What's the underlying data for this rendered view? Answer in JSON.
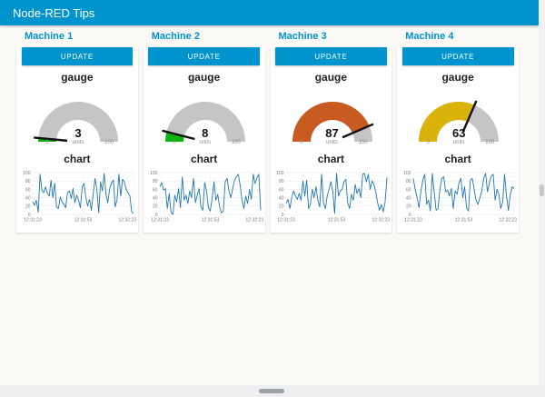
{
  "header": {
    "title": "Node-RED Tips"
  },
  "theme": {
    "accent_blue": "#0094ce",
    "page_background": "#faf9f5",
    "card_background": "#ffffff",
    "gauge_track_gray": "#c5c5c5",
    "needle_color": "#111111",
    "chart_line_color": "#1f77b4",
    "grid_color": "#e6e6e6",
    "tick_text_color": "#777777"
  },
  "machines": [
    {
      "name": "Machine 1",
      "button_label": "UPDATE",
      "gauge": {
        "title": "gauge",
        "value": 3,
        "min": 0,
        "max": 100,
        "units": "units",
        "fill_color": "#09b509"
      },
      "chart_title": "chart"
    },
    {
      "name": "Machine 2",
      "button_label": "UPDATE",
      "gauge": {
        "title": "gauge",
        "value": 8,
        "min": 0,
        "max": 100,
        "units": "units",
        "fill_color": "#09b509"
      },
      "chart_title": "chart"
    },
    {
      "name": "Machine 3",
      "button_label": "UPDATE",
      "gauge": {
        "title": "gauge",
        "value": 87,
        "min": 0,
        "max": 100,
        "units": "units",
        "fill_color": "#c85c20"
      },
      "chart_title": "chart"
    },
    {
      "name": "Machine 4",
      "button_label": "UPDATE",
      "gauge": {
        "title": "gauge",
        "value": 63,
        "min": 0,
        "max": 100,
        "units": "units",
        "fill_color": "#dab30a"
      },
      "chart_title": "chart"
    }
  ],
  "chart_data": [
    {
      "type": "line",
      "title": "chart",
      "x_ticks": [
        "12:31:23",
        "12:31:53",
        "12:32:23"
      ],
      "y_ticks": [
        0,
        20,
        40,
        60,
        80,
        100
      ],
      "ylim": [
        0,
        100
      ],
      "grid": true,
      "legend": false,
      "values": [
        30,
        22,
        34,
        5,
        96,
        58,
        52,
        66,
        50,
        44,
        82,
        40,
        75,
        18,
        14,
        42,
        30,
        24,
        16,
        52,
        56,
        38,
        62,
        28,
        46,
        34,
        16,
        66,
        74,
        40,
        20,
        36,
        10,
        48,
        86,
        60,
        4,
        78,
        56,
        98,
        48,
        28,
        62,
        76,
        82,
        18,
        34,
        96,
        44,
        84,
        78,
        60,
        52,
        44,
        6,
        2
      ]
    },
    {
      "type": "line",
      "title": "chart",
      "x_ticks": [
        "12:31:23",
        "12:31:53",
        "12:32:23"
      ],
      "y_ticks": [
        0,
        20,
        40,
        60,
        80,
        100
      ],
      "ylim": [
        0,
        100
      ],
      "grid": true,
      "legend": false,
      "values": [
        66,
        76,
        58,
        62,
        14,
        50,
        4,
        0,
        46,
        30,
        62,
        16,
        90,
        34,
        46,
        26,
        56,
        40,
        86,
        28,
        46,
        62,
        18,
        10,
        76,
        56,
        16,
        8,
        40,
        78,
        34,
        48,
        18,
        4,
        8,
        78,
        86,
        56,
        40,
        62,
        82,
        90,
        96,
        70,
        34,
        14,
        44,
        26,
        60,
        36,
        96,
        74,
        88,
        96,
        10
      ]
    },
    {
      "type": "line",
      "title": "chart",
      "x_ticks": [
        "12:31:23",
        "12:31:53",
        "12:32:23"
      ],
      "y_ticks": [
        0,
        20,
        40,
        60,
        80,
        100
      ],
      "ylim": [
        0,
        100
      ],
      "grid": true,
      "legend": false,
      "values": [
        26,
        36,
        14,
        40,
        56,
        44,
        36,
        50,
        34,
        80,
        44,
        82,
        14,
        24,
        60,
        40,
        66,
        34,
        18,
        96,
        28,
        14,
        44,
        60,
        78,
        54,
        2,
        98,
        44,
        56,
        60,
        78,
        84,
        28,
        14,
        48,
        34,
        72,
        50,
        62,
        40,
        96,
        98,
        78,
        96,
        60,
        80,
        72,
        54,
        28,
        10,
        24,
        6,
        28,
        88
      ]
    },
    {
      "type": "line",
      "title": "chart",
      "x_ticks": [
        "12:31:23",
        "12:31:53",
        "12:32:23"
      ],
      "y_ticks": [
        0,
        20,
        40,
        60,
        80,
        100
      ],
      "ylim": [
        0,
        100
      ],
      "grid": true,
      "legend": false,
      "values": [
        86,
        60,
        40,
        16,
        56,
        82,
        96,
        24,
        34,
        8,
        98,
        54,
        10,
        14,
        60,
        86,
        90,
        54,
        58,
        44,
        62,
        14,
        56,
        48,
        76,
        86,
        40,
        66,
        16,
        8,
        82,
        86,
        60,
        34,
        24,
        40,
        56,
        86,
        98,
        54,
        76,
        92,
        96,
        34,
        60,
        48,
        14,
        30,
        96,
        44,
        10,
        48,
        66,
        62
      ]
    }
  ]
}
